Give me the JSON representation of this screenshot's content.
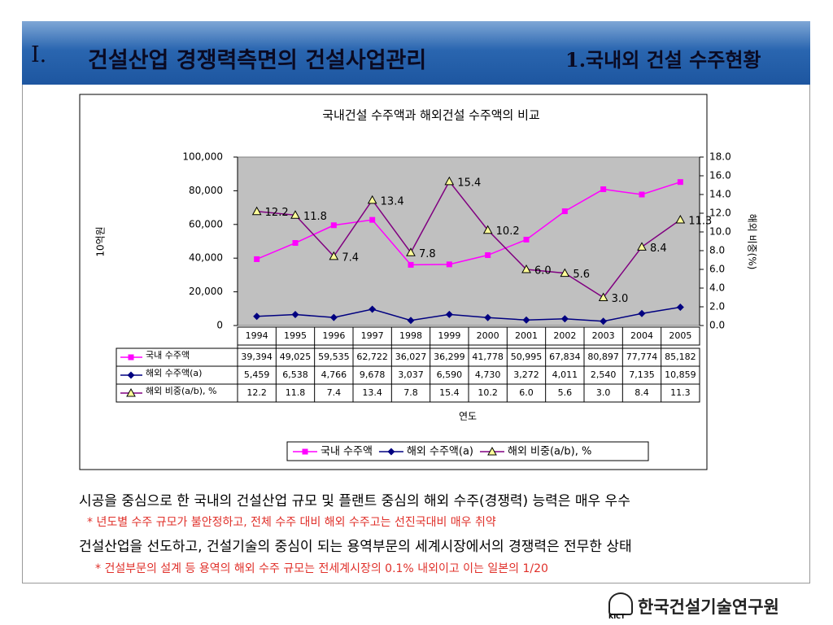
{
  "header": {
    "section": "I.",
    "title": "건설산업 경쟁력측면의 건설사업관리",
    "subtitle": "1.국내외 건설 수주현황"
  },
  "chart_data": {
    "type": "line",
    "title": "국내건설 수주액과 해외건설 수주액의 비교",
    "y_label": "10억원",
    "y2_label": "해외 비중(%)",
    "x_label": "연도",
    "categories": [
      "1994",
      "1995",
      "1996",
      "1997",
      "1998",
      "1999",
      "2000",
      "2001",
      "2002",
      "2003",
      "2004",
      "2005"
    ],
    "series": [
      {
        "name": "국내 수주액",
        "color": "#ff00ff",
        "marker": "square",
        "values": [
          39394,
          49025,
          59535,
          62722,
          36027,
          36299,
          41778,
          50995,
          67834,
          80897,
          77774,
          85182
        ],
        "value_labels": [
          "39,394",
          "49,025",
          "59,535",
          "62,722",
          "36,027",
          "36,299",
          "41,778",
          "50,995",
          "67,834",
          "80,897",
          "77,774",
          "85,182"
        ]
      },
      {
        "name": "해외 수주액(a)",
        "color": "#000080",
        "marker": "diamond",
        "values": [
          5459,
          6538,
          4766,
          9678,
          3037,
          6590,
          4730,
          3272,
          4011,
          2540,
          7135,
          10859
        ],
        "value_labels": [
          "5,459",
          "6,538",
          "4,766",
          "9,678",
          "3,037",
          "6,590",
          "4,730",
          "3,272",
          "4,011",
          "2,540",
          "7,135",
          "10,859"
        ]
      },
      {
        "name": "해외 비중(a/b), %",
        "color": "#800080",
        "marker": "triangle",
        "axis": "y2",
        "values": [
          12.2,
          11.8,
          7.4,
          13.4,
          7.8,
          15.4,
          10.2,
          6,
          5.6,
          3,
          8.4,
          11.3
        ],
        "value_labels": [
          "12.2",
          "11.8",
          "7.4",
          "13.4",
          "7.8",
          "15.4",
          "10.2",
          "6.0",
          "5.6",
          "3.0",
          "8.4",
          "11.3"
        ]
      }
    ],
    "ylim": [
      0,
      100000
    ],
    "yticks": [
      0,
      {
        "value": 20000,
        "label": "20,000"
      },
      {
        "value": 40000,
        "label": "40,000"
      },
      {
        "value": 60000,
        "label": "60,000"
      },
      {
        "value": 80000,
        "label": "80,000"
      },
      {
        "value": 100000,
        "label": "100,000"
      }
    ],
    "y2lim": [
      0,
      18
    ],
    "y2ticks": [
      {
        "value": 0,
        "label": "0.0"
      },
      {
        "value": 2,
        "label": "2.0"
      },
      {
        "value": 4,
        "label": "4.0"
      },
      {
        "value": 6,
        "label": "6.0"
      },
      {
        "value": 8,
        "label": "8.0"
      },
      {
        "value": 10,
        "label": "10.0"
      },
      {
        "value": 12,
        "label": "12.0"
      },
      {
        "value": 14,
        "label": "14.0"
      },
      {
        "value": 16,
        "label": "16.0"
      },
      {
        "value": 18,
        "label": "18.0"
      }
    ],
    "plot_color": "#c0c0c0",
    "legend": "bottom",
    "data_table": true
  },
  "bullets": [
    {
      "text": "시공을 중심으로 한 국내의 건설산업 규모 및 플랜트 중심의 해외 수주(경쟁력) 능력은 매우 우수",
      "note": "* 년도별 수주 규모가 불안정하고, 전체 수주 대비 해외 수주고는 선진국대비 매우 취약"
    },
    {
      "text": "건설산업을 선도하고, 건설기술의 중심이 되는 용역부문의 세계시장에서의 경쟁력은 전무한 상태",
      "note": "* 건설부문의 설계 등 용역의 해외 수주 규모는 전세계시장의 0.1% 내외이고 이는 일본의 1/20"
    }
  ],
  "footer": {
    "logo_abbr": "KICT",
    "org": "한국건설기술연구원"
  }
}
